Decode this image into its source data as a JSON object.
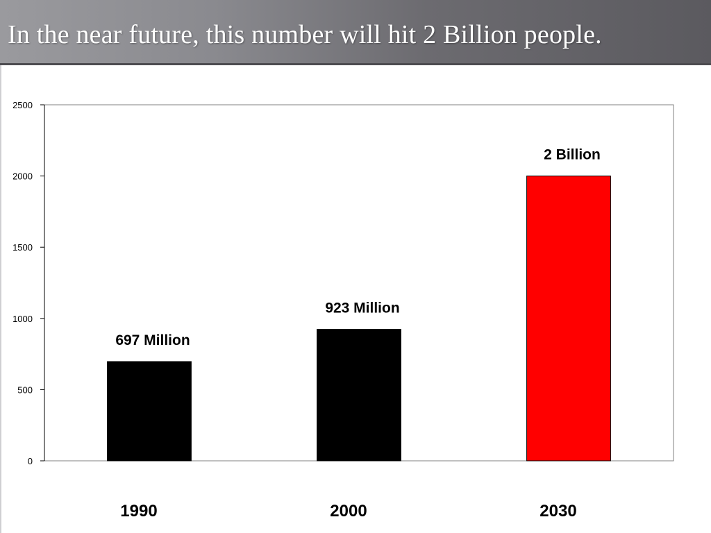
{
  "slide": {
    "title": "In the near future, this number will hit 2 Billion people."
  },
  "chart_data": {
    "type": "bar",
    "title": "",
    "xlabel": "",
    "ylabel": "",
    "categories": [
      "1990",
      "2000",
      "2030"
    ],
    "values": [
      697,
      923,
      2000
    ],
    "data_labels": [
      "697 Million",
      "923 Million",
      "2 Billion"
    ],
    "bar_colors": [
      "#000000",
      "#000000",
      "#ff0000"
    ],
    "ylim": [
      0,
      2500
    ],
    "yticks": [
      0,
      500,
      1000,
      1500,
      2000,
      2500
    ],
    "grid": false,
    "legend": "none"
  }
}
